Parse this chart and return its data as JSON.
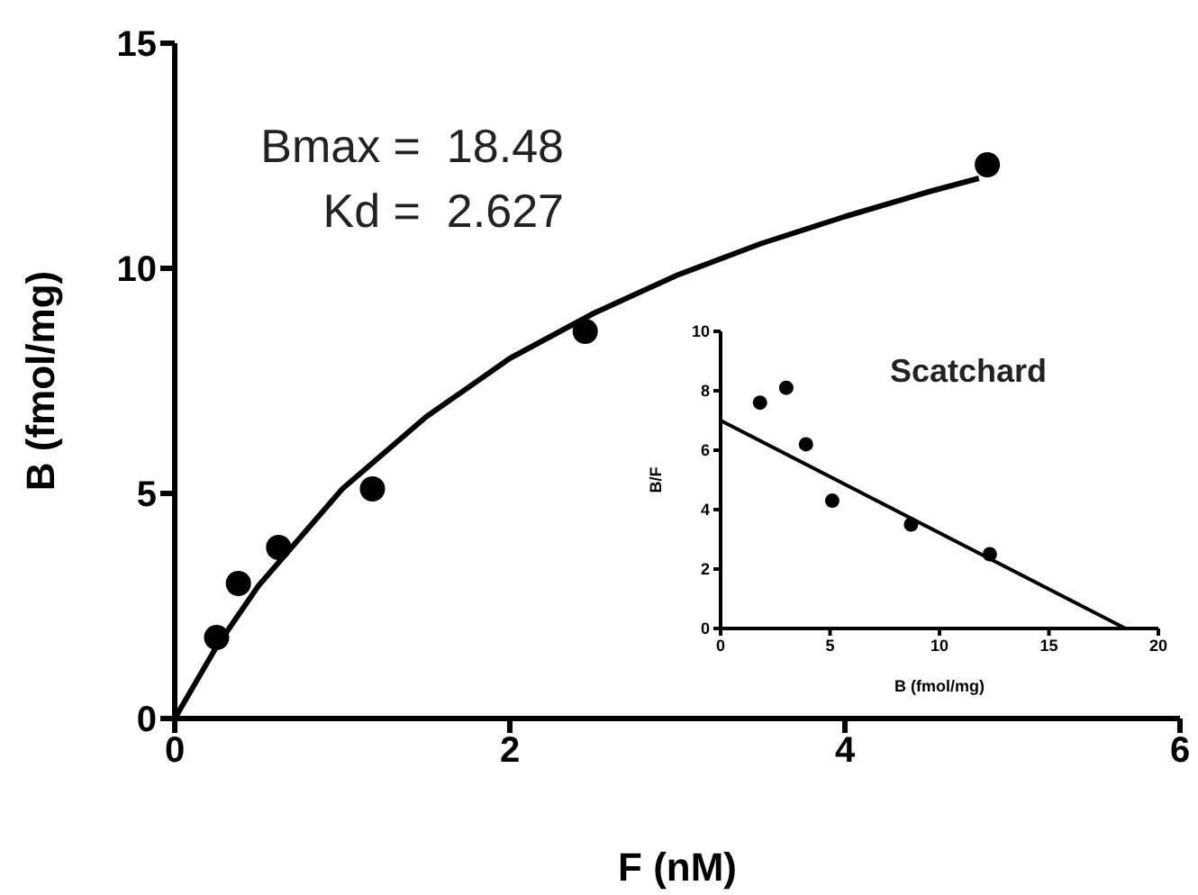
{
  "chart_data": [
    {
      "type": "scatter",
      "xlabel": "F  (nM)",
      "ylabel": "B (fmol/mg)",
      "xlim": [
        0,
        6
      ],
      "ylim": [
        0,
        15
      ],
      "xticks": [
        0,
        2,
        4,
        6
      ],
      "yticks": [
        0,
        5,
        10,
        15
      ],
      "annotations": [
        "Bmax =  18.48",
        "Kd =  2.627"
      ],
      "series": [
        {
          "color": "#000000",
          "x": [
            0.25,
            0.38,
            0.62,
            1.18,
            2.45,
            4.85
          ],
          "values": [
            1.8,
            3.0,
            3.8,
            5.1,
            8.6,
            12.3
          ]
        },
        {
          "type": "line",
          "color": "#000000",
          "x": [
            0,
            0.25,
            0.5,
            1,
            1.5,
            2,
            2.5,
            3,
            3.5,
            4,
            4.5,
            4.8
          ],
          "values": [
            0,
            1.6,
            2.95,
            5.1,
            6.7,
            8.0,
            9.0,
            9.85,
            10.55,
            11.15,
            11.7,
            12.0
          ]
        }
      ]
    },
    {
      "type": "scatter",
      "title": "Scatchard",
      "xlabel": "B (fmol/mg)",
      "ylabel": "B/F",
      "xlim": [
        0,
        20
      ],
      "ylim": [
        0,
        10
      ],
      "xticks": [
        0,
        5,
        10,
        15,
        20
      ],
      "yticks": [
        0,
        2,
        4,
        6,
        8,
        10
      ],
      "series": [
        {
          "color": "#000000",
          "x": [
            1.8,
            3.0,
            3.9,
            5.1,
            8.7,
            12.3
          ],
          "values": [
            7.6,
            8.1,
            6.2,
            4.3,
            3.5,
            2.5
          ]
        },
        {
          "type": "line",
          "color": "#000000",
          "x": [
            0,
            18.5
          ],
          "values": [
            7.0,
            0
          ]
        }
      ]
    }
  ]
}
